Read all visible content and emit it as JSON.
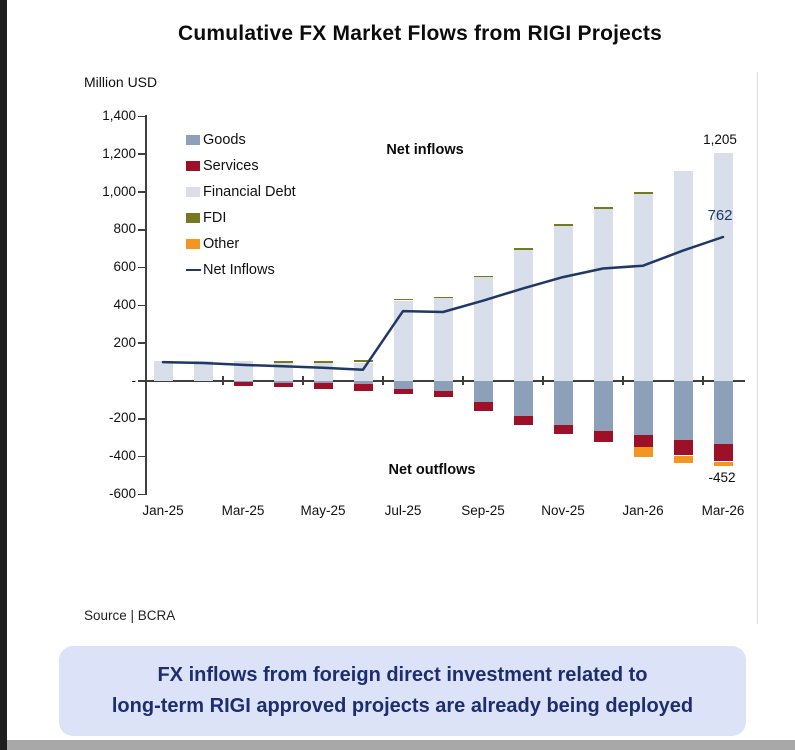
{
  "page": {
    "title": "Cumulative FX Market Flows from RIGI Projects",
    "source": "Source | BCRA",
    "banner_line1": "FX inflows from foreign direct investment related to",
    "banner_line2": "long-term RIGI approved projects are already being deployed"
  },
  "chart_data": {
    "type": "stacked-bar-line-combo",
    "title": "Cumulative FX Market Flows from RIGI Projects",
    "unit_label": "Million USD",
    "ylim": [
      -600,
      1400
    ],
    "grid": false,
    "legend_position": "upper-left-inside",
    "y_ticks": [
      {
        "value": 1400,
        "label": "1,400"
      },
      {
        "value": 1200,
        "label": "1,200"
      },
      {
        "value": 1000,
        "label": "1,000"
      },
      {
        "value": 800,
        "label": "800"
      },
      {
        "value": 600,
        "label": "600"
      },
      {
        "value": 400,
        "label": "400"
      },
      {
        "value": 200,
        "label": "200"
      },
      {
        "value": 0,
        "label": "-"
      },
      {
        "value": -200,
        "label": "-200"
      },
      {
        "value": -400,
        "label": "-400"
      },
      {
        "value": -600,
        "label": "-600"
      }
    ],
    "x": [
      "Jan-25",
      "Feb-25",
      "Mar-25",
      "Apr-25",
      "May-25",
      "Jun-25",
      "Jul-25",
      "Aug-25",
      "Sep-25",
      "Oct-25",
      "Nov-25",
      "Dec-25",
      "Jan-26",
      "Feb-26",
      "Mar-26"
    ],
    "x_tick_labels": [
      "Jan-25",
      "Mar-25",
      "May-25",
      "Jul-25",
      "Sep-25",
      "Nov-25",
      "Jan-26",
      "Mar-26"
    ],
    "series": [
      {
        "name": "Goods",
        "color": "#8DA0BA",
        "values": [
          0,
          0,
          -5,
          -10,
          -12,
          -18,
          -41,
          -52,
          -112,
          -186,
          -234,
          -266,
          -285,
          -314,
          -335
        ]
      },
      {
        "name": "Services",
        "color": "#9C1127",
        "values": [
          0,
          0,
          -20,
          -23,
          -28,
          -34,
          -28,
          -33,
          -47,
          -48,
          -48,
          -59,
          -65,
          -80,
          -91
        ]
      },
      {
        "name": "Financial Debt",
        "color": "#D8DEEA",
        "values": [
          105,
          105,
          105,
          97,
          95,
          98,
          426,
          437,
          548,
          692,
          820,
          910,
          990,
          1110,
          1205
        ]
      },
      {
        "name": "FDI",
        "color": "#75791F",
        "values": [
          0,
          0,
          0,
          8,
          10,
          12,
          10,
          10,
          10,
          10,
          10,
          10,
          10,
          0,
          0
        ]
      },
      {
        "name": "Other",
        "color": "#F5941F",
        "values": [
          0,
          0,
          0,
          0,
          0,
          0,
          0,
          0,
          0,
          0,
          0,
          0,
          -50,
          -42,
          -26
        ]
      }
    ],
    "line_series": {
      "name": "Net Inflows",
      "color": "#1F3864",
      "values": [
        100,
        95,
        85,
        78,
        70,
        60,
        370,
        365,
        425,
        490,
        550,
        595,
        610,
        690,
        762
      ]
    },
    "annotations": {
      "net_inflows_label": "Net inflows",
      "net_outflows_label": "Net outflows"
    },
    "data_labels": {
      "final_bar_total": "1,205",
      "final_net_inflows": "762",
      "final_outflow_total": "-452"
    }
  }
}
